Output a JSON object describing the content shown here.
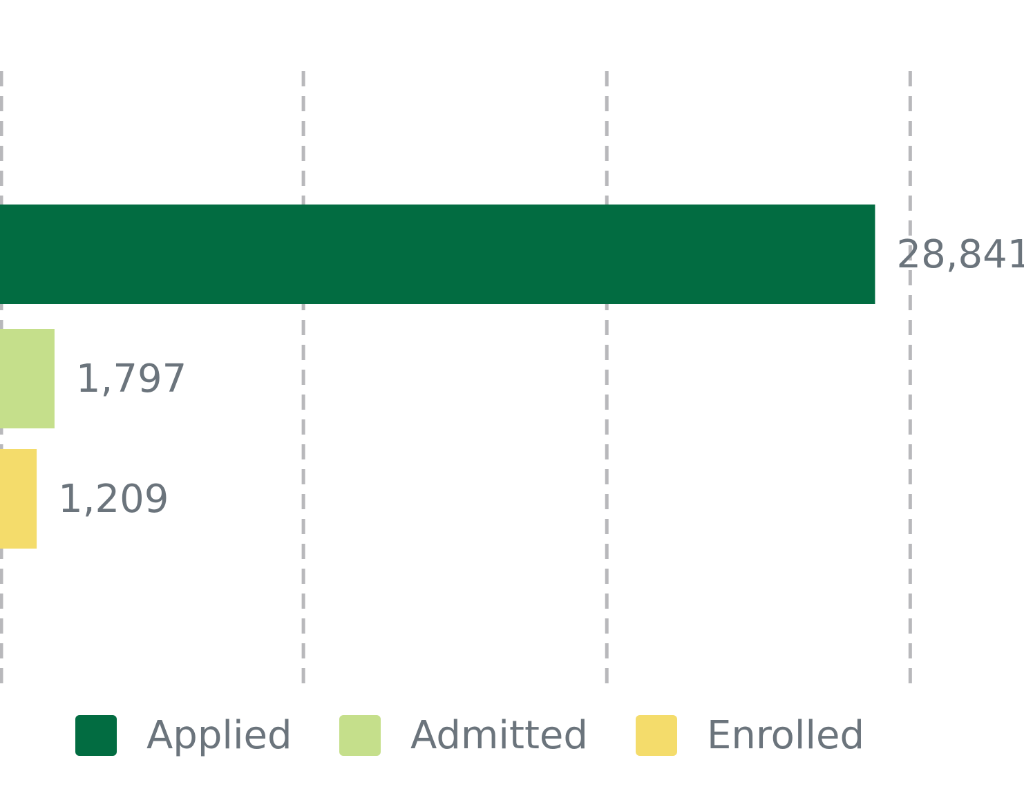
{
  "chart_data": {
    "type": "bar",
    "orientation": "horizontal",
    "series": [
      {
        "name": "Applied",
        "color": "#026c41",
        "values": [
          28841
        ],
        "value_labels": [
          "28,841"
        ]
      },
      {
        "name": "Admitted",
        "color": "#c5df8b",
        "values": [
          1797
        ],
        "value_labels": [
          "1,797"
        ]
      },
      {
        "name": "Enrolled",
        "color": "#f4dc6b",
        "values": [
          1209
        ],
        "value_labels": [
          "1,209"
        ]
      }
    ],
    "xlim": [
      0,
      33750
    ],
    "xticks": [
      0,
      10000,
      20000,
      30000
    ],
    "grid": true,
    "legend": "bottom"
  }
}
